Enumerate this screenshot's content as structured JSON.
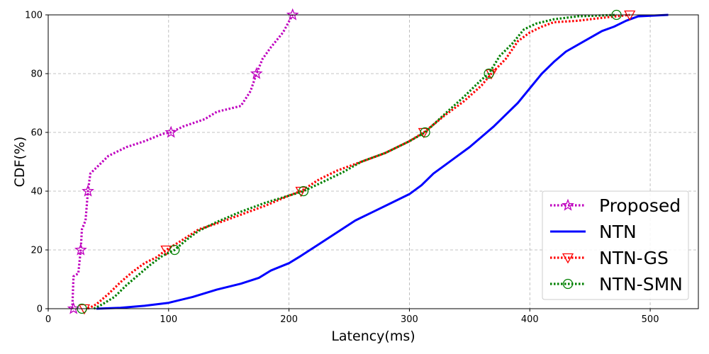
{
  "chart_data": {
    "type": "line",
    "xlabel": "Latency(ms)",
    "ylabel": "CDF(%)",
    "xlim": [
      0,
      540
    ],
    "ylim": [
      0,
      100
    ],
    "xticks": [
      0,
      100,
      200,
      300,
      400,
      500
    ],
    "yticks": [
      0,
      20,
      40,
      60,
      80,
      100
    ],
    "grid": true,
    "legend_position": "lower-right",
    "series": [
      {
        "name": "Proposed",
        "color": "#bf00bf",
        "style": "dotted",
        "marker": "star",
        "marker_points": [
          [
            21,
            0
          ],
          [
            27,
            20
          ],
          [
            33,
            40
          ],
          [
            102,
            60
          ],
          [
            173,
            80
          ],
          [
            203,
            100
          ]
        ],
        "points": [
          [
            20,
            0
          ],
          [
            21,
            11
          ],
          [
            25,
            12
          ],
          [
            27,
            20
          ],
          [
            28,
            27
          ],
          [
            31,
            30
          ],
          [
            33,
            40
          ],
          [
            35,
            46
          ],
          [
            40,
            48
          ],
          [
            50,
            52
          ],
          [
            65,
            55
          ],
          [
            80,
            57
          ],
          [
            95,
            59.5
          ],
          [
            102,
            60
          ],
          [
            112,
            62
          ],
          [
            130,
            64.5
          ],
          [
            140,
            67
          ],
          [
            160,
            69
          ],
          [
            168,
            74
          ],
          [
            173,
            80
          ],
          [
            178,
            85
          ],
          [
            185,
            89
          ],
          [
            195,
            94
          ],
          [
            203,
            100
          ]
        ]
      },
      {
        "name": "NTN",
        "color": "#0000ff",
        "style": "solid",
        "marker": "none",
        "points": [
          [
            40,
            0
          ],
          [
            60,
            0.3
          ],
          [
            80,
            1
          ],
          [
            100,
            2
          ],
          [
            120,
            4
          ],
          [
            140,
            6.5
          ],
          [
            160,
            8.5
          ],
          [
            175,
            10.5
          ],
          [
            185,
            13
          ],
          [
            200,
            15.5
          ],
          [
            210,
            18
          ],
          [
            225,
            22
          ],
          [
            240,
            26
          ],
          [
            255,
            30
          ],
          [
            270,
            33
          ],
          [
            285,
            36
          ],
          [
            300,
            39
          ],
          [
            310,
            42
          ],
          [
            320,
            46
          ],
          [
            330,
            49
          ],
          [
            340,
            52
          ],
          [
            350,
            55
          ],
          [
            360,
            58.5
          ],
          [
            370,
            62
          ],
          [
            380,
            66
          ],
          [
            390,
            70
          ],
          [
            400,
            75
          ],
          [
            410,
            80
          ],
          [
            420,
            84
          ],
          [
            430,
            87.5
          ],
          [
            445,
            91
          ],
          [
            460,
            94.5
          ],
          [
            470,
            96
          ],
          [
            480,
            98
          ],
          [
            490,
            99.5
          ],
          [
            515,
            100
          ]
        ]
      },
      {
        "name": "NTN-GS",
        "color": "#ff0000",
        "style": "dotted",
        "marker": "triangle-down",
        "marker_points": [
          [
            30,
            0
          ],
          [
            98,
            20
          ],
          [
            210,
            40
          ],
          [
            312,
            60
          ],
          [
            368,
            80
          ],
          [
            483,
            100
          ]
        ],
        "points": [
          [
            33,
            0
          ],
          [
            40,
            1.5
          ],
          [
            50,
            5
          ],
          [
            60,
            9
          ],
          [
            70,
            12.5
          ],
          [
            80,
            15.5
          ],
          [
            90,
            17.5
          ],
          [
            98,
            20
          ],
          [
            110,
            23
          ],
          [
            125,
            27
          ],
          [
            140,
            29
          ],
          [
            160,
            32
          ],
          [
            180,
            35
          ],
          [
            200,
            38.5
          ],
          [
            210,
            40
          ],
          [
            225,
            44
          ],
          [
            240,
            47
          ],
          [
            260,
            50
          ],
          [
            280,
            53
          ],
          [
            300,
            57
          ],
          [
            312,
            60
          ],
          [
            330,
            66
          ],
          [
            345,
            70.5
          ],
          [
            360,
            76
          ],
          [
            368,
            80
          ],
          [
            380,
            85
          ],
          [
            390,
            91
          ],
          [
            400,
            94
          ],
          [
            410,
            96
          ],
          [
            420,
            97.5
          ],
          [
            440,
            98
          ],
          [
            460,
            99
          ],
          [
            483,
            100
          ]
        ]
      },
      {
        "name": "NTN-SMN",
        "color": "#008000",
        "style": "dotted",
        "marker": "circle",
        "marker_points": [
          [
            28,
            0
          ],
          [
            105,
            20
          ],
          [
            212,
            40
          ],
          [
            313,
            60
          ],
          [
            366,
            80
          ],
          [
            472,
            100
          ]
        ],
        "points": [
          [
            38,
            0
          ],
          [
            45,
            1.5
          ],
          [
            55,
            4
          ],
          [
            65,
            8
          ],
          [
            75,
            11.5
          ],
          [
            85,
            15
          ],
          [
            95,
            18
          ],
          [
            105,
            20
          ],
          [
            115,
            23.5
          ],
          [
            125,
            26.5
          ],
          [
            140,
            29.5
          ],
          [
            160,
            33
          ],
          [
            180,
            36
          ],
          [
            200,
            38.5
          ],
          [
            212,
            40
          ],
          [
            230,
            43.5
          ],
          [
            245,
            46.5
          ],
          [
            260,
            50
          ],
          [
            280,
            53
          ],
          [
            300,
            57
          ],
          [
            313,
            60
          ],
          [
            330,
            66.5
          ],
          [
            345,
            72
          ],
          [
            360,
            78
          ],
          [
            366,
            80
          ],
          [
            375,
            86
          ],
          [
            385,
            90
          ],
          [
            395,
            95
          ],
          [
            405,
            97
          ],
          [
            420,
            98.5
          ],
          [
            440,
            99.5
          ],
          [
            472,
            100
          ]
        ]
      }
    ]
  }
}
